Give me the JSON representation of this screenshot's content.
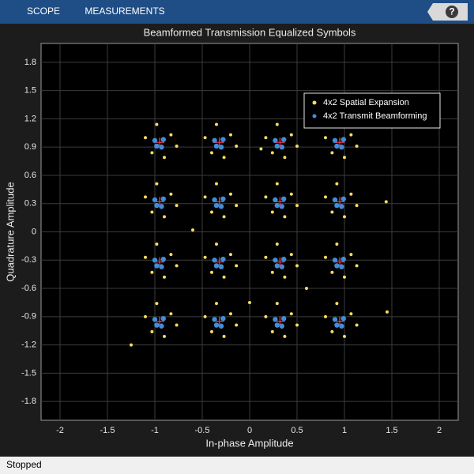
{
  "toolbar": {
    "tabs": [
      "SCOPE",
      "MEASUREMENTS"
    ],
    "help": "?"
  },
  "status": "Stopped",
  "chart_data": {
    "type": "scatter",
    "title": "Beamformed Transmission Equalized Symbols",
    "xlabel": "In-phase Amplitude",
    "ylabel": "Quadrature Amplitude",
    "xlim": [
      -2.2,
      2.2
    ],
    "ylim": [
      -2,
      2
    ],
    "xticks": [
      -2,
      -1.5,
      -1,
      -0.5,
      0,
      0.5,
      1,
      1.5,
      2
    ],
    "yticks": [
      -1.8,
      -1.5,
      -1.2,
      -0.9,
      -0.6,
      -0.3,
      0,
      0.3,
      0.6,
      0.9,
      1.2,
      1.5,
      1.8
    ],
    "grid": true,
    "legend": "upper right",
    "series": [
      {
        "name": "4x2 Spatial Expansion",
        "color": "#f7dc5e",
        "marker": "dot",
        "x": [
          -0.83,
          -1.1,
          -0.9,
          -1.03,
          -0.77,
          -0.98,
          -0.2,
          -0.47,
          -0.27,
          -0.4,
          -0.14,
          -0.35,
          0.44,
          0.17,
          0.37,
          0.24,
          0.5,
          0.29,
          1.07,
          0.8,
          1,
          0.87,
          1.13,
          0.92,
          -0.83,
          -1.1,
          -0.9,
          -1.03,
          -0.77,
          -0.98,
          -0.2,
          -0.47,
          -0.27,
          -0.4,
          -0.14,
          -0.35,
          0.44,
          0.17,
          0.37,
          0.24,
          0.5,
          0.29,
          1.07,
          0.8,
          1,
          0.87,
          1.13,
          0.92,
          -0.83,
          -1.1,
          -0.9,
          -1.03,
          -0.77,
          -0.98,
          -0.2,
          -0.47,
          -0.27,
          -0.4,
          -0.14,
          -0.35,
          0.44,
          0.17,
          0.37,
          0.24,
          0.5,
          0.29,
          1.07,
          0.8,
          1,
          0.87,
          1.13,
          0.92,
          -0.83,
          -1.1,
          -0.9,
          -1.03,
          -0.77,
          -0.98,
          -0.2,
          -0.47,
          -0.27,
          -0.4,
          -0.14,
          -0.35,
          0.44,
          0.17,
          0.37,
          0.24,
          0.5,
          0.29,
          1.07,
          0.8,
          1,
          0.87,
          1.13,
          0.92,
          1.44,
          1.45,
          -1.25,
          0.12,
          -0.6,
          0.6,
          0
        ],
        "values": [
          1.03,
          1,
          0.79,
          0.84,
          0.91,
          1.14,
          1.03,
          1,
          0.79,
          0.84,
          0.91,
          1.14,
          1.03,
          1,
          0.79,
          0.84,
          0.91,
          1.14,
          1.03,
          1,
          0.79,
          0.84,
          0.91,
          1.14,
          0.4,
          0.37,
          0.16,
          0.21,
          0.28,
          0.51,
          0.4,
          0.37,
          0.16,
          0.21,
          0.28,
          0.51,
          0.4,
          0.37,
          0.16,
          0.21,
          0.28,
          0.51,
          0.4,
          0.37,
          0.16,
          0.21,
          0.28,
          0.51,
          -0.24,
          -0.27,
          -0.48,
          -0.43,
          -0.36,
          -0.13,
          -0.24,
          -0.27,
          -0.48,
          -0.43,
          -0.36,
          -0.13,
          -0.24,
          -0.27,
          -0.48,
          -0.43,
          -0.36,
          -0.13,
          -0.24,
          -0.27,
          -0.48,
          -0.43,
          -0.36,
          -0.13,
          -0.87,
          -0.9,
          -1.11,
          -1.06,
          -0.99,
          -0.76,
          -0.87,
          -0.9,
          -1.11,
          -1.06,
          -0.99,
          -0.76,
          -0.87,
          -0.9,
          -1.11,
          -1.06,
          -0.99,
          -0.76,
          -0.87,
          -0.9,
          -1.11,
          -1.06,
          -0.99,
          -0.76,
          0.32,
          -0.85,
          -1.2,
          0.88,
          0.02,
          -0.6,
          -0.75
        ]
      },
      {
        "name": "4x2 Transmit Beamforming",
        "color": "#3d8fdc",
        "marker": "dot",
        "x": [
          -0.91,
          -1,
          -0.93,
          -0.98,
          -0.28,
          -0.37,
          -0.3,
          -0.35,
          0.36,
          0.27,
          0.34,
          0.29,
          0.99,
          0.9,
          0.97,
          0.92,
          -0.91,
          -1,
          -0.93,
          -0.98,
          -0.28,
          -0.37,
          -0.3,
          -0.35,
          0.36,
          0.27,
          0.34,
          0.29,
          0.99,
          0.9,
          0.97,
          0.92,
          -0.91,
          -1,
          -0.93,
          -0.98,
          -0.28,
          -0.37,
          -0.3,
          -0.35,
          0.36,
          0.27,
          0.34,
          0.29,
          0.99,
          0.9,
          0.97,
          0.92,
          -0.91,
          -1,
          -0.93,
          -0.98,
          -0.28,
          -0.37,
          -0.3,
          -0.35,
          0.36,
          0.27,
          0.34,
          0.29,
          0.99,
          0.9,
          0.97,
          0.92
        ],
        "values": [
          0.98,
          0.97,
          0.9,
          0.91,
          0.98,
          0.97,
          0.9,
          0.91,
          0.98,
          0.97,
          0.9,
          0.91,
          0.98,
          0.97,
          0.9,
          0.91,
          0.35,
          0.34,
          0.27,
          0.28,
          0.35,
          0.34,
          0.27,
          0.28,
          0.35,
          0.34,
          0.27,
          0.28,
          0.35,
          0.34,
          0.27,
          0.28,
          -0.29,
          -0.3,
          -0.37,
          -0.36,
          -0.29,
          -0.3,
          -0.37,
          -0.36,
          -0.29,
          -0.3,
          -0.37,
          -0.36,
          -0.29,
          -0.3,
          -0.37,
          -0.36,
          -0.92,
          -0.93,
          -1,
          -0.99,
          -0.92,
          -0.93,
          -1,
          -0.99,
          -0.92,
          -0.93,
          -1,
          -0.99,
          -0.92,
          -0.93,
          -1,
          -0.99
        ]
      },
      {
        "color": "#e8344e",
        "marker": "plus",
        "x": [
          -0.95,
          -0.32,
          0.32,
          0.95,
          -0.95,
          -0.32,
          0.32,
          0.95,
          -0.95,
          -0.32,
          0.32,
          0.95,
          -0.95,
          -0.32,
          0.32,
          0.95
        ],
        "values": [
          0.95,
          0.95,
          0.95,
          0.95,
          0.32,
          0.32,
          0.32,
          0.32,
          -0.32,
          -0.32,
          -0.32,
          -0.32,
          -0.95,
          -0.95,
          -0.95,
          -0.95
        ]
      }
    ]
  }
}
